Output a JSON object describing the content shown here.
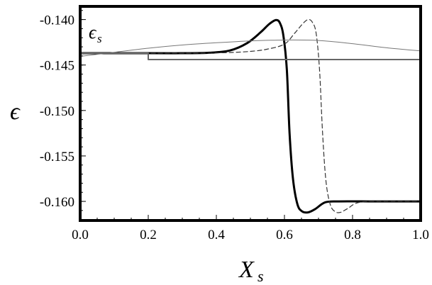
{
  "chart_data": {
    "type": "line",
    "xlabel": "X",
    "xlabel_sub": "s",
    "ylabel": "ϵ",
    "annotation": "ϵ",
    "annotation_sub": "s",
    "xlim": [
      0.0,
      1.0
    ],
    "ylim": [
      -0.1621,
      -0.13855
    ],
    "x_ticks": [
      "0.0",
      "0.2",
      "0.4",
      "0.6",
      "0.8",
      "1.0"
    ],
    "x_tick_values": [
      0.0,
      0.2,
      0.4,
      0.6,
      0.8,
      1.0
    ],
    "y_ticks": [
      "-0.140",
      "-0.145",
      "-0.150",
      "-0.155",
      "-0.160"
    ],
    "y_tick_values": [
      -0.14,
      -0.145,
      -0.15,
      -0.155,
      -0.16
    ],
    "grid": false,
    "series": [
      {
        "style": "thick-solid",
        "color": "#000000",
        "points": [
          [
            0.0,
            -0.1437
          ],
          [
            0.2,
            -0.1437
          ],
          [
            0.3,
            -0.1437
          ],
          [
            0.38,
            -0.14365
          ],
          [
            0.44,
            -0.1434
          ],
          [
            0.49,
            -0.1426
          ],
          [
            0.53,
            -0.1414
          ],
          [
            0.555,
            -0.1405
          ],
          [
            0.575,
            -0.14005
          ],
          [
            0.587,
            -0.1404
          ],
          [
            0.597,
            -0.1418
          ],
          [
            0.607,
            -0.1455
          ],
          [
            0.615,
            -0.1525
          ],
          [
            0.625,
            -0.1575
          ],
          [
            0.638,
            -0.1603
          ],
          [
            0.652,
            -0.1611
          ],
          [
            0.67,
            -0.1612
          ],
          [
            0.69,
            -0.16085
          ],
          [
            0.72,
            -0.1601
          ],
          [
            0.76,
            -0.16
          ],
          [
            0.85,
            -0.16
          ],
          [
            1.0,
            -0.16
          ]
        ]
      },
      {
        "style": "dashed",
        "color": "#333333",
        "points": [
          [
            0.0,
            -0.1437
          ],
          [
            0.3,
            -0.1437
          ],
          [
            0.42,
            -0.14365
          ],
          [
            0.5,
            -0.1435
          ],
          [
            0.55,
            -0.14325
          ],
          [
            0.6,
            -0.1427
          ],
          [
            0.63,
            -0.1415
          ],
          [
            0.655,
            -0.1404
          ],
          [
            0.67,
            -0.14
          ],
          [
            0.682,
            -0.1403
          ],
          [
            0.693,
            -0.1415
          ],
          [
            0.703,
            -0.1455
          ],
          [
            0.712,
            -0.1525
          ],
          [
            0.722,
            -0.1578
          ],
          [
            0.735,
            -0.1604
          ],
          [
            0.75,
            -0.16115
          ],
          [
            0.765,
            -0.1612
          ],
          [
            0.785,
            -0.1608
          ],
          [
            0.82,
            -0.1601
          ],
          [
            0.9,
            -0.16
          ],
          [
            1.0,
            -0.16
          ]
        ]
      },
      {
        "style": "thin-solid",
        "color": "#777777",
        "points": [
          [
            0.0,
            -0.14405
          ],
          [
            0.1,
            -0.1436
          ],
          [
            0.2,
            -0.14315
          ],
          [
            0.3,
            -0.1428
          ],
          [
            0.4,
            -0.14255
          ],
          [
            0.5,
            -0.14235
          ],
          [
            0.6,
            -0.14225
          ],
          [
            0.7,
            -0.1423
          ],
          [
            0.8,
            -0.14265
          ],
          [
            0.9,
            -0.1431
          ],
          [
            1.0,
            -0.14345
          ]
        ]
      },
      {
        "style": "medium-step",
        "color": "#666666",
        "points": [
          [
            0.0,
            -0.1437
          ],
          [
            0.2,
            -0.1437
          ],
          [
            0.2,
            -0.1444
          ],
          [
            1.0,
            -0.1444
          ]
        ]
      }
    ]
  }
}
